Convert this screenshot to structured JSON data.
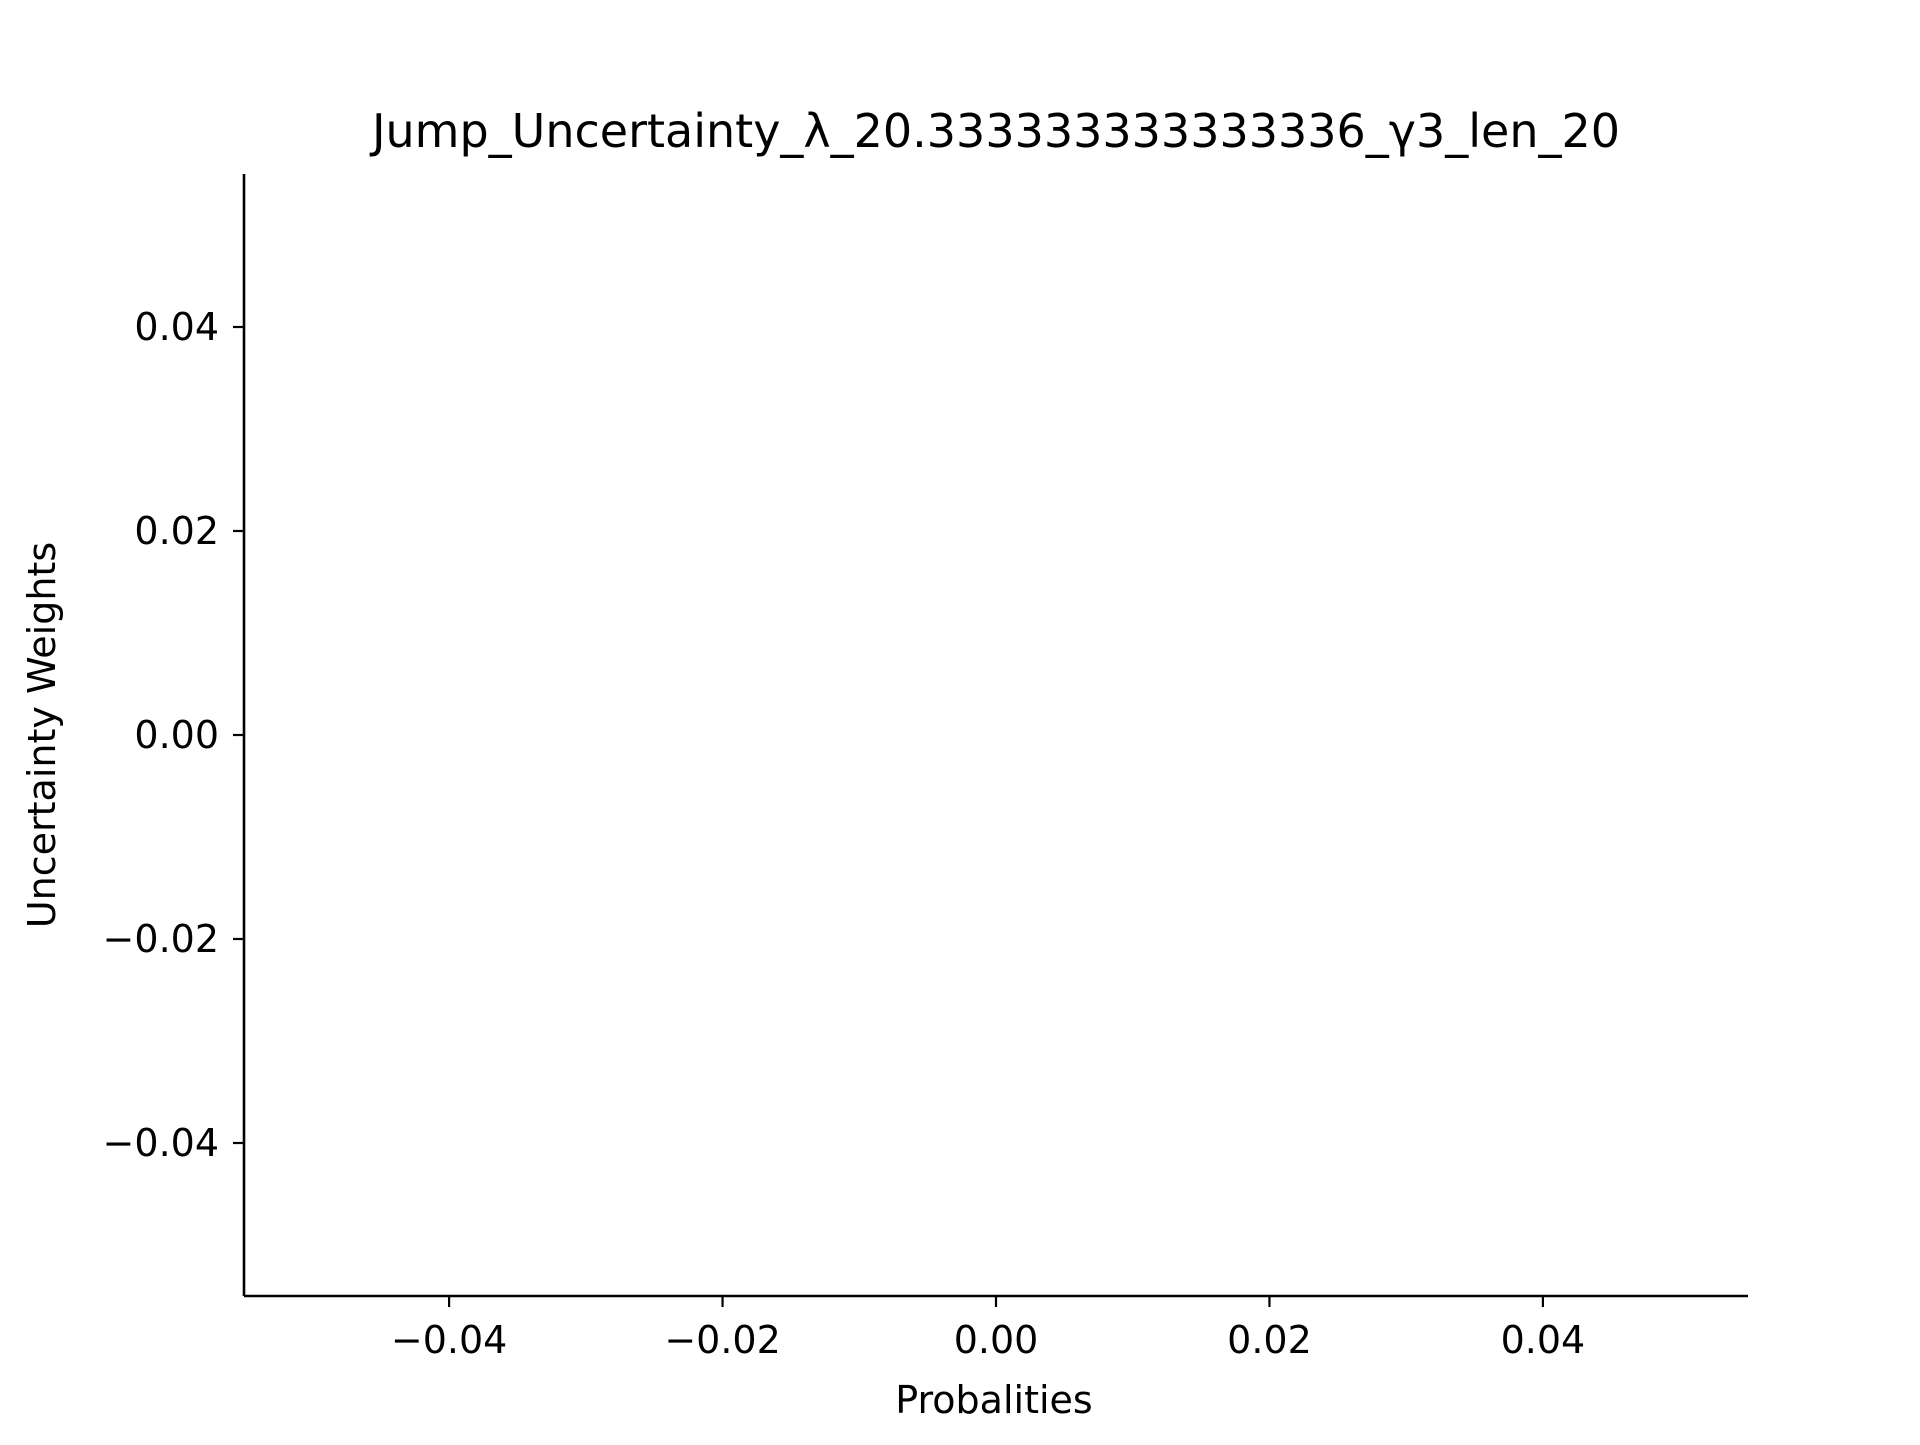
{
  "chart_data": {
    "type": "line",
    "title": "Jump_Uncertainty_λ_20.333333333333336_γ3_len_20",
    "xlabel": "Probalities",
    "ylabel": "Uncertainty Weights",
    "x": [],
    "series": [],
    "xlim": [
      -0.055,
      0.055
    ],
    "ylim": [
      -0.055,
      0.055
    ],
    "xticks": [
      -0.04,
      -0.02,
      0.0,
      0.02,
      0.04
    ],
    "xtick_labels": [
      "−0.04",
      "−0.02",
      "0.00",
      "0.02",
      "0.04"
    ],
    "yticks": [
      -0.04,
      -0.02,
      0.0,
      0.02,
      0.04
    ],
    "ytick_labels": [
      "−0.04",
      "−0.02",
      "0.00",
      "0.02",
      "0.04"
    ],
    "grid": false,
    "spines": [
      "left",
      "bottom"
    ]
  },
  "colors": {
    "axis": "#000000",
    "background": "#ffffff"
  }
}
